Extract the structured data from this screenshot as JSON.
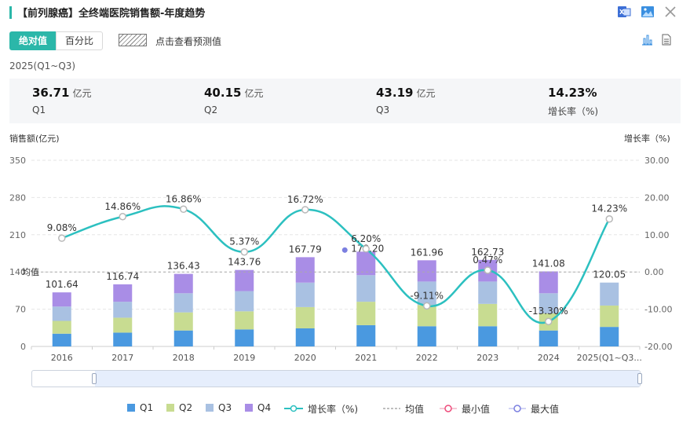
{
  "header": {
    "title": "【前列腺癌】全终端医院销售额-年度趋势",
    "excel_icon": "excel-export-icon",
    "image_icon": "image-export-icon",
    "close_icon": "close-icon"
  },
  "toolbar": {
    "absolute_label": "绝对值",
    "percent_label": "百分比",
    "forecast_label": "点击查看预测值",
    "bar_icon": "bar-chart-icon",
    "doc_icon": "document-icon"
  },
  "period": "2025(Q1~Q3)",
  "summary": [
    {
      "value": "36.71",
      "unit": "亿元",
      "label": "Q1"
    },
    {
      "value": "40.15",
      "unit": "亿元",
      "label": "Q2"
    },
    {
      "value": "43.19",
      "unit": "亿元",
      "label": "Q3"
    },
    {
      "value": "14.23%",
      "unit": "",
      "label": "增长率（%)"
    }
  ],
  "axes": {
    "left_title": "销售额(亿元)",
    "right_title": "增长率（%)"
  },
  "colors": {
    "q1": "#4a99e0",
    "q2": "#c8dc91",
    "q3": "#a9c1e2",
    "q4": "#a98de6",
    "growth": "#2cc0c0",
    "mean": "#aaaaaa",
    "min": "#ee4b7b",
    "max": "#7b7fe0"
  },
  "legend": {
    "q1": "Q1",
    "q2": "Q2",
    "q3": "Q3",
    "q4": "Q4",
    "growth": "增长率（%)",
    "mean": "均值",
    "min": "最小值",
    "max": "最大值"
  },
  "chart_data": {
    "type": "bar",
    "stacked": true,
    "categories": [
      "2016",
      "2017",
      "2018",
      "2019",
      "2020",
      "2021",
      "2022",
      "2023",
      "2024",
      "2025(Q1~Q3..."
    ],
    "series": [
      {
        "name": "Q1",
        "values": [
          24,
          26,
          30,
          32,
          34,
          40,
          38,
          38,
          30,
          36.71
        ]
      },
      {
        "name": "Q2",
        "values": [
          24,
          28,
          34,
          34,
          40,
          44,
          40,
          42,
          32,
          40.15
        ]
      },
      {
        "name": "Q3",
        "values": [
          27,
          30,
          36,
          38,
          46,
          50,
          44,
          42,
          38,
          43.19
        ]
      },
      {
        "name": "Q4",
        "values": [
          26.64,
          32.74,
          36.43,
          39.76,
          47.79,
          44.2,
          39.96,
          40.73,
          41.08,
          0
        ]
      }
    ],
    "totals": [
      101.64,
      116.74,
      136.43,
      143.76,
      167.79,
      178.2,
      161.96,
      162.73,
      141.08,
      120.05
    ],
    "totals_labels": [
      "101.64",
      "116.74",
      "136.43",
      "143.76",
      "167.79",
      "178.20",
      "161.96",
      "162.73",
      "141.08",
      "120.05"
    ],
    "growth": {
      "name": "增长率（%)",
      "values": [
        9.08,
        14.86,
        16.86,
        5.37,
        16.72,
        6.2,
        -9.11,
        0.47,
        -13.3,
        14.23
      ],
      "labels": [
        "9.08%",
        "14.86%",
        "16.86%",
        "5.37%",
        "16.72%",
        "6.20%",
        "-9.11%",
        "0.47%",
        "-13.30%",
        "14.23%"
      ]
    },
    "mean": {
      "label": "均值",
      "value": 140
    },
    "max_point_index": 5,
    "y_left": {
      "title": "销售额(亿元)",
      "min": 0,
      "max": 350,
      "ticks": [
        "0",
        "70",
        "140",
        "210",
        "280",
        "350"
      ]
    },
    "y_right": {
      "title": "增长率（%)",
      "min": -20,
      "max": 30,
      "ticks": [
        "-20.00",
        "-10.00",
        "0.00",
        "10.00",
        "20.00",
        "30.00"
      ]
    }
  }
}
